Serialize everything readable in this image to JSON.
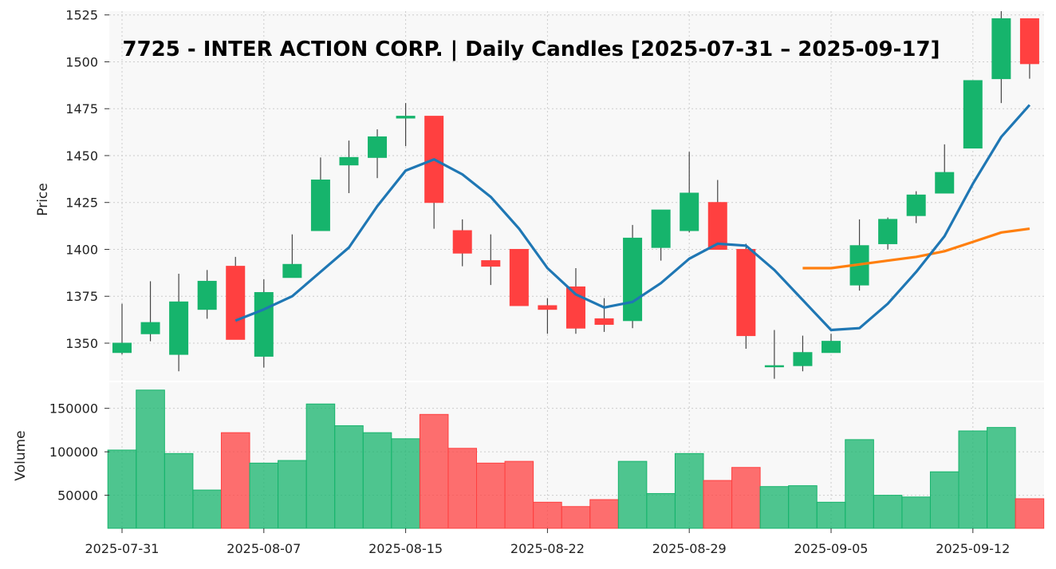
{
  "chart_data": {
    "type": "candlestick",
    "title": "7725 - INTER ACTION CORP. | Daily Candles [2025-07-31 – 2025-09-17]",
    "price_panel": {
      "ylabel": "Price",
      "ylim": [
        1330,
        1527
      ],
      "yticks": [
        "1350",
        "1375",
        "1400",
        "1425",
        "1450",
        "1475",
        "1500",
        "1525"
      ]
    },
    "volume_panel": {
      "ylabel": "Volume",
      "ylim": [
        12000,
        180000
      ],
      "yticks": [
        "50000",
        "100000",
        "150000"
      ]
    },
    "xticks": [
      {
        "label": "2025-07-31",
        "index": 0
      },
      {
        "label": "2025-08-07",
        "index": 5
      },
      {
        "label": "2025-08-15",
        "index": 10
      },
      {
        "label": "2025-08-22",
        "index": 15
      },
      {
        "label": "2025-08-29",
        "index": 20
      },
      {
        "label": "2025-09-05",
        "index": 25
      },
      {
        "label": "2025-09-12",
        "index": 30
      }
    ],
    "grid": true,
    "colors": {
      "up": "#16b46c",
      "down": "#ff4040",
      "ma_short": "#1f77b4",
      "ma_long": "#ff7f0e"
    },
    "candles": [
      {
        "o": 1345,
        "h": 1371,
        "l": 1344,
        "c": 1350,
        "v": 102000
      },
      {
        "o": 1355,
        "h": 1383,
        "l": 1351,
        "c": 1361,
        "v": 171000
      },
      {
        "o": 1344,
        "h": 1387,
        "l": 1335,
        "c": 1372,
        "v": 98000
      },
      {
        "o": 1368,
        "h": 1389,
        "l": 1363,
        "c": 1383,
        "v": 56000
      },
      {
        "o": 1391,
        "h": 1396,
        "l": 1352,
        "c": 1352,
        "v": 122000
      },
      {
        "o": 1343,
        "h": 1384,
        "l": 1337,
        "c": 1377,
        "v": 87000
      },
      {
        "o": 1385,
        "h": 1408,
        "l": 1385,
        "c": 1392,
        "v": 90000
      },
      {
        "o": 1410,
        "h": 1449,
        "l": 1410,
        "c": 1437,
        "v": 155000
      },
      {
        "o": 1445,
        "h": 1458,
        "l": 1430,
        "c": 1449,
        "v": 130000
      },
      {
        "o": 1449,
        "h": 1464,
        "l": 1438,
        "c": 1460,
        "v": 122000
      },
      {
        "o": 1470,
        "h": 1478,
        "l": 1455,
        "c": 1471,
        "v": 115000
      },
      {
        "o": 1471,
        "h": 1471,
        "l": 1411,
        "c": 1425,
        "v": 143000
      },
      {
        "o": 1410,
        "h": 1416,
        "l": 1391,
        "c": 1398,
        "v": 104000
      },
      {
        "o": 1394,
        "h": 1408,
        "l": 1381,
        "c": 1391,
        "v": 87000
      },
      {
        "o": 1400,
        "h": 1400,
        "l": 1370,
        "c": 1370,
        "v": 89000
      },
      {
        "o": 1370,
        "h": 1374,
        "l": 1355,
        "c": 1368,
        "v": 42000
      },
      {
        "o": 1380,
        "h": 1390,
        "l": 1355,
        "c": 1358,
        "v": 37000
      },
      {
        "o": 1363,
        "h": 1374,
        "l": 1356,
        "c": 1360,
        "v": 45000
      },
      {
        "o": 1362,
        "h": 1413,
        "l": 1358,
        "c": 1406,
        "v": 89000
      },
      {
        "o": 1401,
        "h": 1421,
        "l": 1394,
        "c": 1421,
        "v": 52000
      },
      {
        "o": 1410,
        "h": 1452,
        "l": 1409,
        "c": 1430,
        "v": 98000
      },
      {
        "o": 1425,
        "h": 1437,
        "l": 1400,
        "c": 1400,
        "v": 67000
      },
      {
        "o": 1400,
        "h": 1403,
        "l": 1347,
        "c": 1354,
        "v": 82000
      },
      {
        "o": 1338,
        "h": 1357,
        "l": 1331,
        "c": 1338,
        "v": 60000
      },
      {
        "o": 1338,
        "h": 1354,
        "l": 1335,
        "c": 1345,
        "v": 61000
      },
      {
        "o": 1345,
        "h": 1355,
        "l": 1345,
        "c": 1351,
        "v": 42000
      },
      {
        "o": 1381,
        "h": 1416,
        "l": 1378,
        "c": 1402,
        "v": 114000
      },
      {
        "o": 1403,
        "h": 1417,
        "l": 1400,
        "c": 1416,
        "v": 50000
      },
      {
        "o": 1418,
        "h": 1431,
        "l": 1414,
        "c": 1429,
        "v": 48000
      },
      {
        "o": 1430,
        "h": 1456,
        "l": 1430,
        "c": 1441,
        "v": 77000
      },
      {
        "o": 1454,
        "h": 1490,
        "l": 1454,
        "c": 1490,
        "v": 124000
      },
      {
        "o": 1491,
        "h": 1527,
        "l": 1478,
        "c": 1523,
        "v": 128000
      },
      {
        "o": 1523,
        "h": 1523,
        "l": 1491,
        "c": 1499,
        "v": 46000
      }
    ],
    "ma_short": [
      null,
      null,
      null,
      null,
      1362,
      1368,
      1375,
      1388,
      1401,
      1423,
      1442,
      1448,
      1440,
      1428,
      1411,
      1390,
      1376,
      1369,
      1372,
      1382,
      1395,
      1403,
      1402,
      1389,
      1373,
      1357,
      1358,
      1371,
      1388,
      1407,
      1435,
      1460,
      1477
    ],
    "ma_long": [
      null,
      null,
      null,
      null,
      null,
      null,
      null,
      null,
      null,
      null,
      null,
      null,
      null,
      null,
      null,
      null,
      null,
      null,
      null,
      null,
      null,
      null,
      null,
      null,
      1390,
      1390,
      1392,
      1394,
      1396,
      1399,
      1404,
      1409,
      1411
    ]
  }
}
